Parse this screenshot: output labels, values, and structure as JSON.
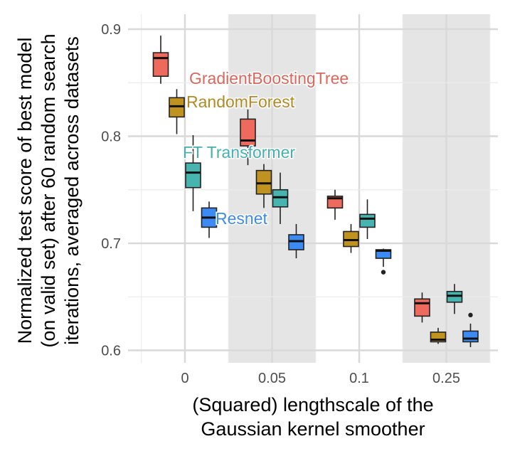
{
  "chart_data": {
    "type": "box",
    "xlabel_lines": [
      "(Squared) lengthscale of the",
      "Gaussian kernel smoother"
    ],
    "ylabel_lines": [
      "Normalized test score of best model",
      "(on valid set) after 60 random search",
      "iterations, averaged across datasets"
    ],
    "categories": [
      "0",
      "0.05",
      "0.1",
      "0.25"
    ],
    "shaded_categories": [
      "0.05",
      "0.25"
    ],
    "ylim": [
      0.585,
      0.91
    ],
    "yticks": [
      0.6,
      0.7,
      0.8,
      0.9
    ],
    "ytick_labels": [
      "0.6",
      "0.7",
      "0.8",
      "0.9"
    ],
    "grid": true,
    "series": [
      {
        "name": "GradientBoostingTree",
        "color": "#EE6A5C",
        "label_color": "#D9675C",
        "boxes": [
          {
            "low": 0.849,
            "q1": 0.856,
            "median": 0.873,
            "q3": 0.878,
            "high": 0.894,
            "outliers": []
          },
          {
            "low": 0.773,
            "q1": 0.791,
            "median": 0.796,
            "q3": 0.816,
            "high": 0.825,
            "outliers": []
          },
          {
            "low": 0.722,
            "q1": 0.733,
            "median": 0.742,
            "q3": 0.744,
            "high": 0.75,
            "outliers": []
          },
          {
            "low": 0.626,
            "q1": 0.632,
            "median": 0.644,
            "q3": 0.648,
            "high": 0.654,
            "outliers": []
          }
        ]
      },
      {
        "name": "RandomForest",
        "color": "#C0921F",
        "label_color": "#B38A22",
        "boxes": [
          {
            "low": 0.802,
            "q1": 0.818,
            "median": 0.828,
            "q3": 0.836,
            "high": 0.844,
            "outliers": []
          },
          {
            "low": 0.733,
            "q1": 0.746,
            "median": 0.756,
            "q3": 0.768,
            "high": 0.774,
            "outliers": []
          },
          {
            "low": 0.691,
            "q1": 0.697,
            "median": 0.703,
            "q3": 0.711,
            "high": 0.718,
            "outliers": []
          },
          {
            "low": 0.606,
            "q1": 0.608,
            "median": 0.61,
            "q3": 0.617,
            "high": 0.621,
            "outliers": []
          }
        ]
      },
      {
        "name": "FT Transformer",
        "color": "#47B4B0",
        "label_color": "#45B0B0",
        "boxes": [
          {
            "low": 0.73,
            "q1": 0.752,
            "median": 0.766,
            "q3": 0.775,
            "high": 0.801,
            "outliers": []
          },
          {
            "low": 0.718,
            "q1": 0.734,
            "median": 0.743,
            "q3": 0.75,
            "high": 0.766,
            "outliers": []
          },
          {
            "low": 0.704,
            "q1": 0.715,
            "median": 0.723,
            "q3": 0.727,
            "high": 0.741,
            "outliers": []
          },
          {
            "low": 0.634,
            "q1": 0.645,
            "median": 0.651,
            "q3": 0.655,
            "high": 0.662,
            "outliers": []
          }
        ]
      },
      {
        "name": "Resnet",
        "color": "#3C8BF5",
        "label_color": "#3D8AEB",
        "boxes": [
          {
            "low": 0.705,
            "q1": 0.715,
            "median": 0.724,
            "q3": 0.733,
            "high": 0.739,
            "outliers": []
          },
          {
            "low": 0.686,
            "q1": 0.694,
            "median": 0.702,
            "q3": 0.708,
            "high": 0.718,
            "outliers": []
          },
          {
            "low": 0.678,
            "q1": 0.686,
            "median": 0.693,
            "q3": 0.694,
            "high": 0.695,
            "outliers": [
              0.673
            ]
          },
          {
            "low": 0.603,
            "q1": 0.608,
            "median": 0.611,
            "q3": 0.618,
            "high": 0.625,
            "outliers": [
              0.633
            ]
          }
        ]
      }
    ]
  }
}
